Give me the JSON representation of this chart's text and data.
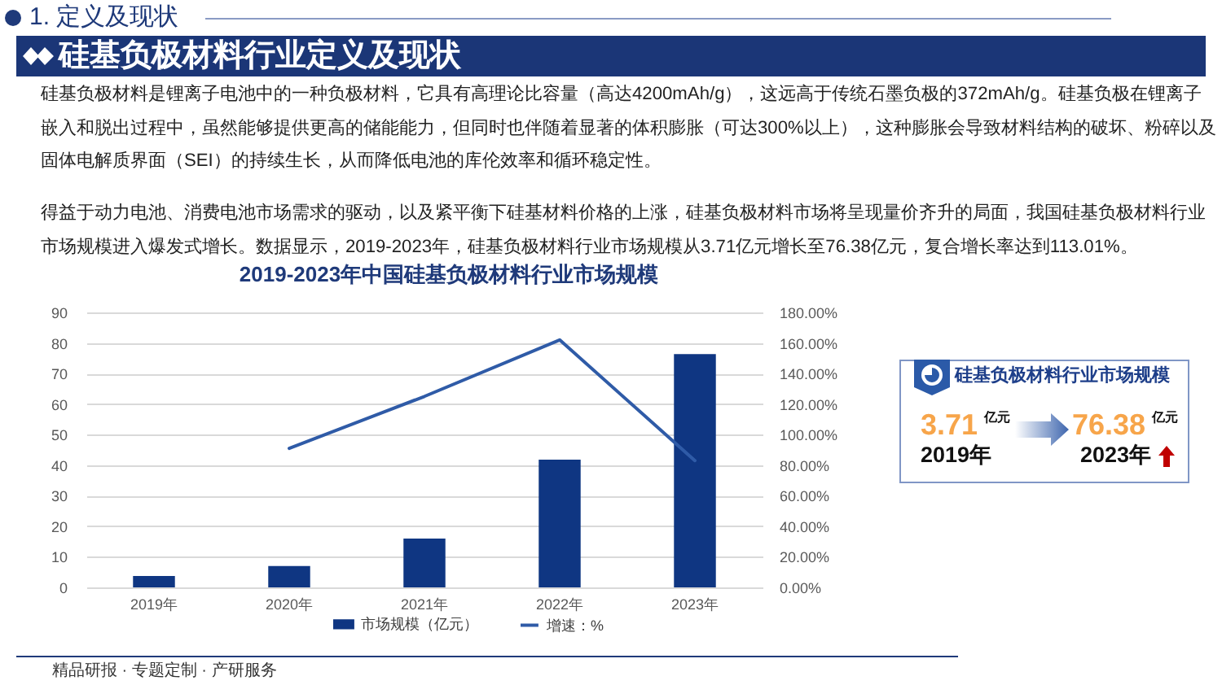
{
  "chart_data": {
    "type": "bar",
    "title": "2019-2023年中国硅基负极材料行业市场规模",
    "categories": [
      "2019年",
      "2020年",
      "2021年",
      "2022年",
      "2023年"
    ],
    "series": [
      {
        "name": "市场规模（亿元）",
        "color": "#0f3682",
        "values": [
          3.71,
          7.0,
          16.0,
          41.8,
          76.38
        ]
      },
      {
        "name": "增速：%",
        "type": "line",
        "axis": "y2",
        "color": "#2f5ba7",
        "values": [
          null,
          91,
          125,
          162,
          83
        ]
      }
    ],
    "ylim": [
      0,
      90
    ],
    "yticks": [
      0,
      10,
      20,
      30,
      40,
      50,
      60,
      70,
      80,
      90
    ],
    "y2lim": [
      0,
      180
    ],
    "y2ticks": [
      {
        "value": 0,
        "label": "0.00%"
      },
      {
        "value": 20,
        "label": "20.00%"
      },
      {
        "value": 40,
        "label": "40.00%"
      },
      {
        "value": 60,
        "label": "60.00%"
      },
      {
        "value": 80,
        "label": "80.00%"
      },
      {
        "value": 100,
        "label": "100.00%"
      },
      {
        "value": 120,
        "label": "120.00%"
      },
      {
        "value": 140,
        "label": "140.00%"
      },
      {
        "value": 160,
        "label": "160.00%"
      },
      {
        "value": 180,
        "label": "180.00%"
      }
    ],
    "grid": "y",
    "legend": "bottom",
    "annotations": [
      "1. 定义及现状",
      "硅基负极材料行业定义及现状",
      "硅基负极材料是锂离子电池中的一种负极材料，它具有高理论比容量（高达4200mAh/g），这远高于传统石墨负极的372mAh/g。硅基负极在锂离子嵌入和脱出过程中，虽然能够提供更高的储能能力，但同时也伴随着显著的体积膨胀（可达300%以上），这种膨胀会导致材料结构的破坏、粉碎以及固体电解质界面（SEI）的持续生长，从而降低电池的库伦效率和循环稳定性。",
      "得益于动力电池、消费电池市场需求的驱动，以及紧平衡下硅基材料价格的上涨，硅基负极材料市场将呈现量价齐升的局面，我国硅基负极材料行业市场规模进入爆发式增长。数据显示，2019-2023年，硅基负极材料行业市场规模从3.71亿元增长至76.38亿元，复合增长率达到113.01%。",
      "硅基负极材料行业市场规模",
      "3.71",
      "亿元",
      "2019年",
      "76.38",
      "亿元",
      "2023年",
      "精品研报 · 专题定制 · 产研服务"
    ]
  }
}
